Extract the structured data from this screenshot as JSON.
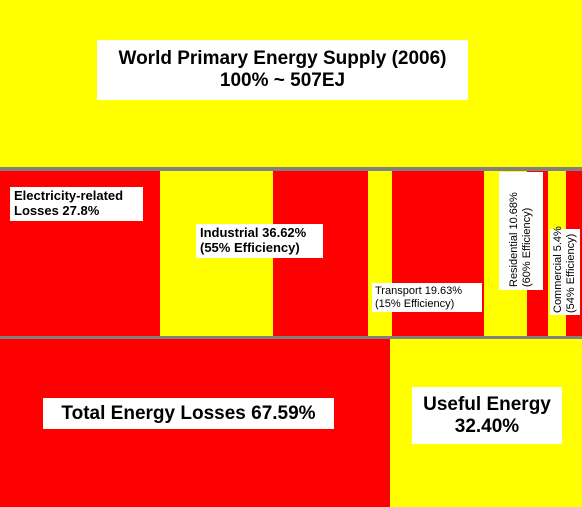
{
  "header": {
    "line1": "World Primary Energy Supply (2006)",
    "line2": "100% ~ 507EJ"
  },
  "sectors": [
    {
      "line1": "Electricity-related",
      "line2": "Losses 27.8%"
    },
    {
      "line1": "Industrial 36.62%",
      "line2": "(55% Efficiency)"
    },
    {
      "line1": "Transport 19.63%",
      "line2": "(15% Efficiency)"
    },
    {
      "line1": "Residential 10.68%",
      "line2": "(60% Efficiency)"
    },
    {
      "line1": "Commercial 5.4%",
      "line2": "(54% Efficiency)"
    }
  ],
  "totals": {
    "losses": "Total Energy Losses 67.59%",
    "useful_line1": "Useful Energy",
    "useful_line2": "32.40%"
  }
}
